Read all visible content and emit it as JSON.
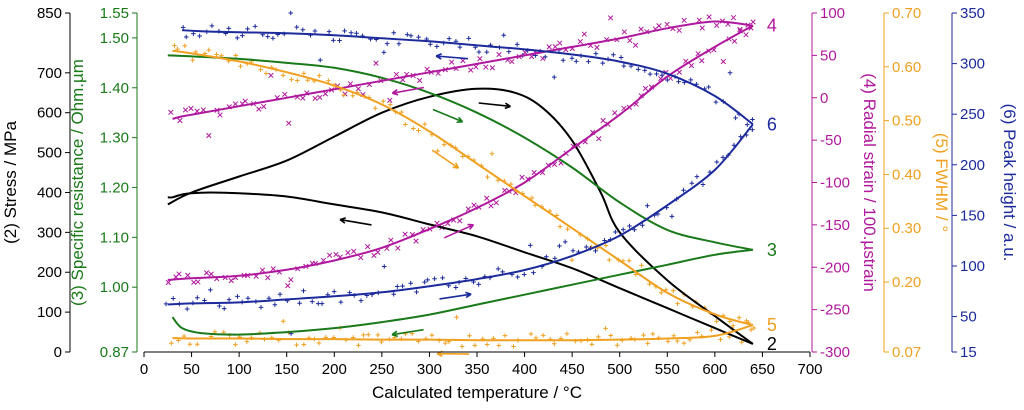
{
  "chart_data": {
    "type": "line",
    "x_axis": {
      "label": "Calculated temperature / °C",
      "range": [
        0,
        700
      ],
      "ticks": [
        0,
        50,
        100,
        150,
        200,
        250,
        300,
        350,
        400,
        450,
        500,
        550,
        600,
        650,
        700
      ]
    },
    "y_axes": [
      {
        "id": "stress",
        "label": "(2) Stress / MPa",
        "side": "left",
        "color": "#000000",
        "range": [
          0,
          850
        ],
        "ticks": [
          0,
          100,
          200,
          300,
          400,
          500,
          600,
          700,
          850
        ]
      },
      {
        "id": "resistance",
        "label": "(3) Specific resistance / Ohm.µm",
        "side": "left",
        "color": "#1a7a1a",
        "range": [
          0.87,
          1.55
        ],
        "ticks": [
          0.87,
          1.0,
          1.1,
          1.2,
          1.3,
          1.4,
          1.5,
          1.55
        ],
        "tick_labels": [
          "0.87",
          "1.00",
          "1.10",
          "1.20",
          "1.30",
          "1.40",
          "1.50",
          "1.55"
        ]
      },
      {
        "id": "strain",
        "label": "(4) Radial strain / 100.µstrain",
        "side": "right",
        "color": "#b0199e",
        "range": [
          -300,
          100
        ],
        "ticks": [
          -300,
          -250,
          -200,
          -150,
          -100,
          -50,
          0,
          50,
          100
        ]
      },
      {
        "id": "fwhm",
        "label": "(5) FWHM / °",
        "side": "right",
        "color": "#f0a020",
        "range": [
          0.07,
          0.7
        ],
        "ticks": [
          0.07,
          0.2,
          0.3,
          0.4,
          0.5,
          0.6,
          0.7
        ],
        "tick_labels": [
          "0.07",
          "0.20",
          "0.30",
          "0.40",
          "0.50",
          "0.60",
          "0.70"
        ]
      },
      {
        "id": "peak",
        "label": "(6) Peak height / a.u.",
        "side": "right",
        "color": "#1c2a9c",
        "range": [
          15,
          350
        ],
        "ticks": [
          15,
          50,
          100,
          150,
          200,
          250,
          300,
          350
        ]
      }
    ],
    "series": [
      {
        "name": "2",
        "axis": "stress",
        "color": "#000000",
        "markers": false,
        "heating": [
          [
            25,
            370
          ],
          [
            50,
            400
          ],
          [
            100,
            440
          ],
          [
            150,
            480
          ],
          [
            200,
            540
          ],
          [
            250,
            600
          ],
          [
            300,
            640
          ],
          [
            350,
            660
          ],
          [
            390,
            650
          ],
          [
            420,
            610
          ],
          [
            450,
            530
          ],
          [
            480,
            400
          ],
          [
            500,
            300
          ],
          [
            550,
            180
          ],
          [
            600,
            90
          ],
          [
            640,
            20
          ]
        ],
        "cooling": [
          [
            640,
            20
          ],
          [
            600,
            60
          ],
          [
            550,
            110
          ],
          [
            500,
            160
          ],
          [
            450,
            210
          ],
          [
            400,
            250
          ],
          [
            350,
            290
          ],
          [
            300,
            320
          ],
          [
            250,
            350
          ],
          [
            200,
            370
          ],
          [
            150,
            390
          ],
          [
            100,
            398
          ],
          [
            70,
            400
          ],
          [
            50,
            398
          ],
          [
            40,
            395
          ],
          [
            30,
            388
          ],
          [
            25,
            388
          ]
        ]
      },
      {
        "name": "3",
        "axis": "resistance",
        "color": "#1a7a1a",
        "markers": false,
        "heating": [
          [
            25,
            1.465
          ],
          [
            50,
            1.463
          ],
          [
            100,
            1.458
          ],
          [
            150,
            1.45
          ],
          [
            200,
            1.44
          ],
          [
            250,
            1.42
          ],
          [
            300,
            1.39
          ],
          [
            350,
            1.35
          ],
          [
            400,
            1.3
          ],
          [
            450,
            1.24
          ],
          [
            500,
            1.17
          ],
          [
            550,
            1.115
          ],
          [
            600,
            1.09
          ],
          [
            640,
            1.075
          ]
        ],
        "cooling": [
          [
            640,
            1.075
          ],
          [
            600,
            1.065
          ],
          [
            550,
            1.045
          ],
          [
            500,
            1.025
          ],
          [
            450,
            1.005
          ],
          [
            400,
            0.985
          ],
          [
            350,
            0.965
          ],
          [
            300,
            0.945
          ],
          [
            250,
            0.93
          ],
          [
            200,
            0.918
          ],
          [
            150,
            0.91
          ],
          [
            100,
            0.905
          ],
          [
            60,
            0.908
          ],
          [
            40,
            0.918
          ],
          [
            30,
            0.94
          ]
        ]
      },
      {
        "name": "4",
        "axis": "strain",
        "color": "#b0199e",
        "markers": true,
        "marker": "x",
        "heating": [
          [
            25,
            -215
          ],
          [
            50,
            -213
          ],
          [
            100,
            -210
          ],
          [
            150,
            -203
          ],
          [
            200,
            -192
          ],
          [
            250,
            -177
          ],
          [
            300,
            -155
          ],
          [
            350,
            -130
          ],
          [
            400,
            -100
          ],
          [
            450,
            -60
          ],
          [
            500,
            -20
          ],
          [
            550,
            25
          ],
          [
            600,
            60
          ],
          [
            640,
            85
          ]
        ],
        "cooling": [
          [
            640,
            85
          ],
          [
            600,
            90
          ],
          [
            550,
            82
          ],
          [
            500,
            70
          ],
          [
            450,
            60
          ],
          [
            400,
            50
          ],
          [
            350,
            40
          ],
          [
            300,
            30
          ],
          [
            250,
            20
          ],
          [
            200,
            10
          ],
          [
            150,
            0
          ],
          [
            100,
            -10
          ],
          [
            60,
            -18
          ],
          [
            40,
            -22
          ],
          [
            30,
            -25
          ]
        ]
      },
      {
        "name": "5",
        "axis": "fwhm",
        "color": "#f0a020",
        "markers": true,
        "marker": "+",
        "heating": [
          [
            30,
            0.63
          ],
          [
            50,
            0.625
          ],
          [
            100,
            0.61
          ],
          [
            150,
            0.59
          ],
          [
            200,
            0.565
          ],
          [
            250,
            0.53
          ],
          [
            300,
            0.48
          ],
          [
            350,
            0.42
          ],
          [
            400,
            0.36
          ],
          [
            450,
            0.3
          ],
          [
            500,
            0.24
          ],
          [
            550,
            0.18
          ],
          [
            600,
            0.14
          ],
          [
            640,
            0.12
          ]
        ],
        "cooling": [
          [
            640,
            0.12
          ],
          [
            600,
            0.1
          ],
          [
            550,
            0.095
          ],
          [
            500,
            0.093
          ],
          [
            450,
            0.092
          ],
          [
            400,
            0.092
          ],
          [
            350,
            0.092
          ],
          [
            300,
            0.093
          ],
          [
            250,
            0.093
          ],
          [
            200,
            0.094
          ],
          [
            150,
            0.094
          ],
          [
            100,
            0.095
          ],
          [
            50,
            0.095
          ],
          [
            30,
            0.096
          ]
        ]
      },
      {
        "name": "6",
        "axis": "peak",
        "color": "#1c2a9c",
        "markers": true,
        "marker": "+",
        "heating": [
          [
            25,
            62
          ],
          [
            50,
            63
          ],
          [
            100,
            64
          ],
          [
            150,
            67
          ],
          [
            200,
            70
          ],
          [
            250,
            74
          ],
          [
            300,
            80
          ],
          [
            350,
            87
          ],
          [
            400,
            96
          ],
          [
            450,
            110
          ],
          [
            500,
            130
          ],
          [
            550,
            160
          ],
          [
            600,
            195
          ],
          [
            640,
            240
          ]
        ],
        "cooling": [
          [
            640,
            240
          ],
          [
            600,
            268
          ],
          [
            550,
            290
          ],
          [
            500,
            302
          ],
          [
            450,
            309
          ],
          [
            400,
            314
          ],
          [
            350,
            318
          ],
          [
            300,
            322
          ],
          [
            250,
            325
          ],
          [
            200,
            328
          ],
          [
            150,
            330
          ],
          [
            100,
            331
          ],
          [
            60,
            332
          ],
          [
            40,
            333
          ]
        ]
      }
    ],
    "grid": false,
    "legend": "none"
  }
}
